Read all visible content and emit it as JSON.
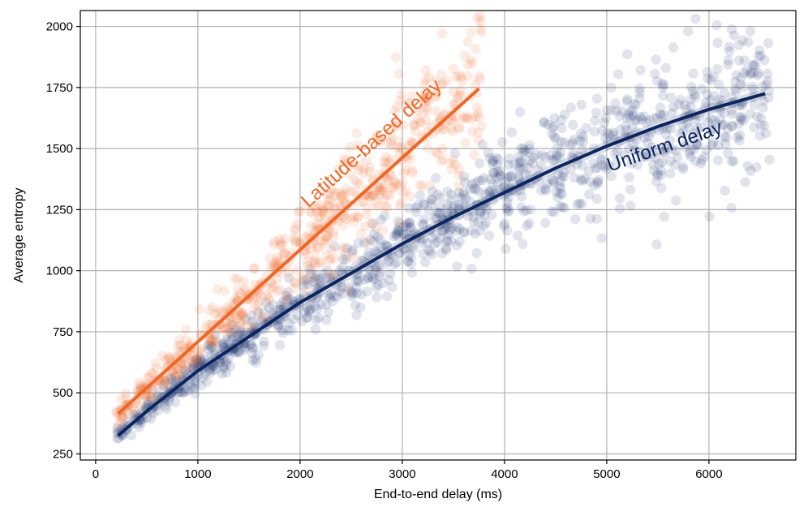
{
  "chart_data": {
    "type": "scatter",
    "title": "",
    "xlabel": "End-to-end delay (ms)",
    "ylabel": "Average entropy",
    "xlim": [
      -150,
      6850
    ],
    "ylim": [
      225,
      2065
    ],
    "x_ticks": [
      0,
      1000,
      2000,
      3000,
      4000,
      5000,
      6000
    ],
    "y_ticks": [
      250,
      500,
      750,
      1000,
      1250,
      1500,
      1750,
      2000
    ],
    "grid": true,
    "legend": "none",
    "series": [
      {
        "name": "Latitude-based delay",
        "color": "#f26522",
        "marker_alpha": 0.12,
        "x_range": [
          200,
          3800
        ],
        "n_points": 650,
        "seed": 7,
        "noise": {
          "at_low_x": 30,
          "at_high_x": 260
        },
        "fit": {
          "type": "linear",
          "x": [
            220,
            3750
          ],
          "y": [
            415,
            1745
          ]
        },
        "label": {
          "text": "Latitude-based delay",
          "x": 2080,
          "y": 1255
        }
      },
      {
        "name": "Uniform delay",
        "color": "#0b2560",
        "marker_alpha": 0.12,
        "x_range": [
          200,
          6600
        ],
        "n_points": 1100,
        "seed": 13,
        "noise": {
          "at_low_x": 30,
          "at_high_x": 260
        },
        "fit": {
          "type": "curve",
          "points": [
            [
              220,
              325
            ],
            [
              500,
              425
            ],
            [
              1000,
              590
            ],
            [
              1500,
              730
            ],
            [
              2000,
              870
            ],
            [
              2500,
              990
            ],
            [
              3000,
              1110
            ],
            [
              3500,
              1220
            ],
            [
              4000,
              1320
            ],
            [
              4500,
              1420
            ],
            [
              5000,
              1510
            ],
            [
              5500,
              1590
            ],
            [
              6000,
              1660
            ],
            [
              6550,
              1725
            ]
          ]
        },
        "label": {
          "text": "Uniform delay",
          "x": 5030,
          "y": 1405
        }
      }
    ]
  }
}
